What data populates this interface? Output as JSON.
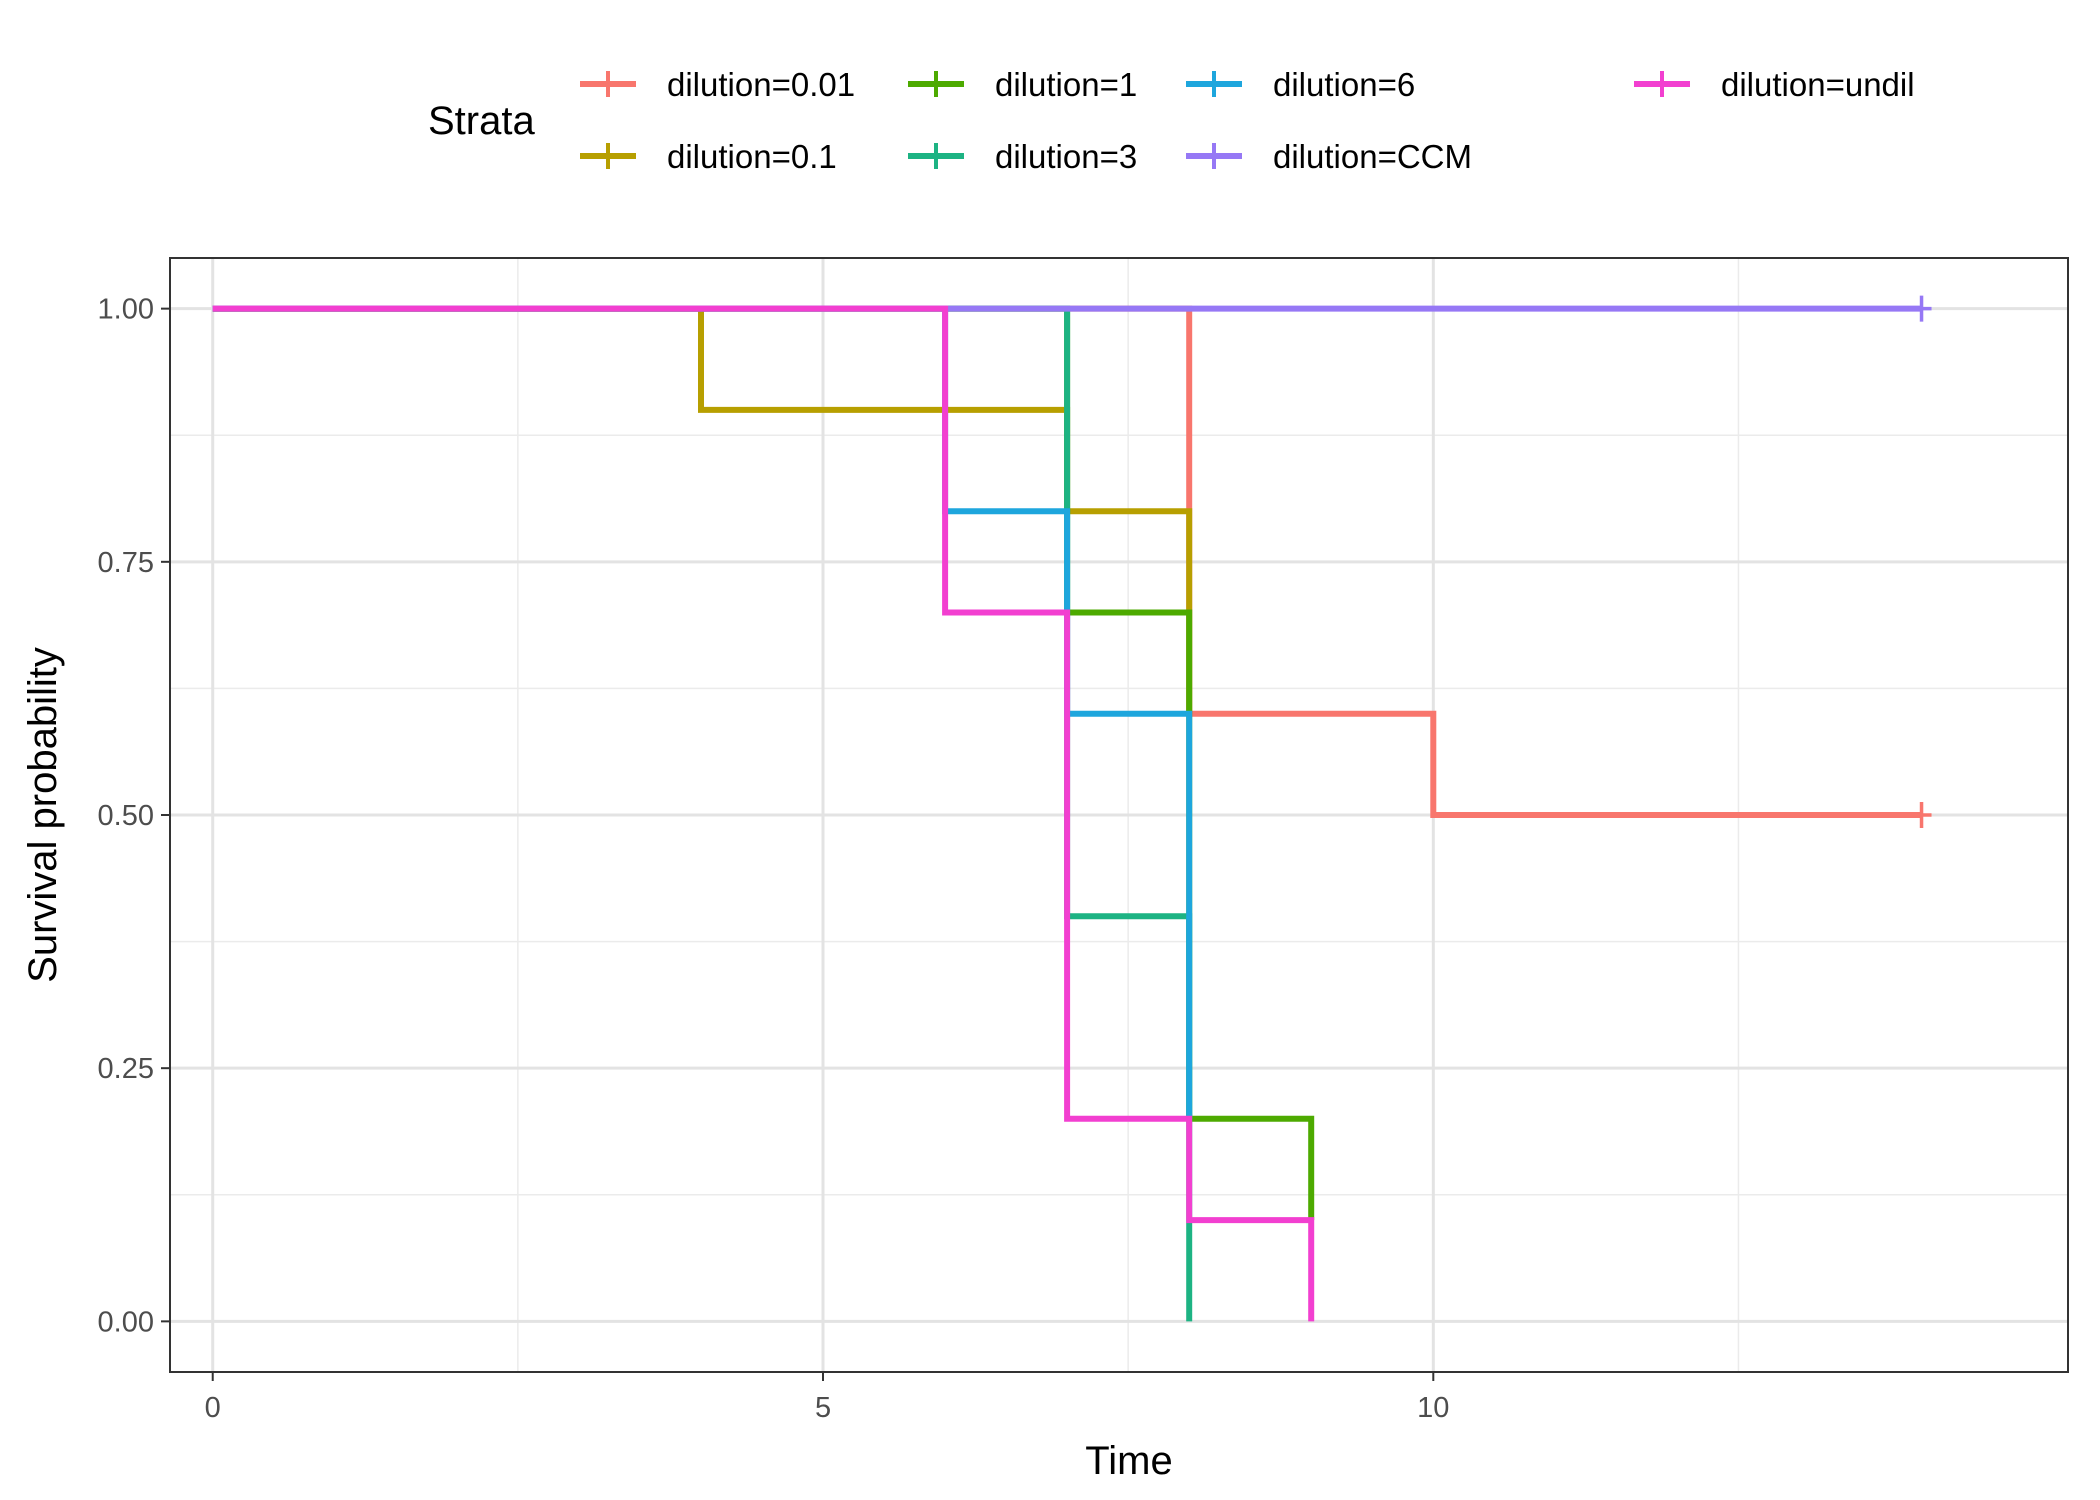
{
  "chart_data": {
    "type": "line",
    "step": true,
    "xlabel": "Time",
    "ylabel": "Survival probability",
    "xlim": [
      -0.35,
      15.2
    ],
    "ylim": [
      -0.05,
      1.05
    ],
    "x_ticks": [
      {
        "value": 0,
        "label": "0"
      },
      {
        "value": 5,
        "label": "5"
      },
      {
        "value": 10,
        "label": "10"
      }
    ],
    "x_minor_gridlines": [
      2.5,
      7.5,
      12.5
    ],
    "y_ticks": [
      {
        "value": 0,
        "label": "0.00"
      },
      {
        "value": 0.25,
        "label": "0.25"
      },
      {
        "value": 0.5,
        "label": "0.50"
      },
      {
        "value": 0.75,
        "label": "0.75"
      },
      {
        "value": 1,
        "label": "1.00"
      }
    ],
    "y_minor_gridlines": [
      0.125,
      0.375,
      0.625,
      0.875
    ],
    "grid": true,
    "legend": {
      "title": "Strata",
      "position": "top",
      "columns": 4
    },
    "series": [
      {
        "name": "dilution=0.01",
        "color": "#F8766D",
        "points": [
          [
            0,
            1
          ],
          [
            8,
            1
          ],
          [
            8,
            0.6
          ],
          [
            10,
            0.6
          ],
          [
            10,
            0.5
          ],
          [
            14,
            0.5
          ]
        ],
        "censor": [
          [
            14,
            0.5
          ]
        ]
      },
      {
        "name": "dilution=0.1",
        "color": "#B79F00",
        "points": [
          [
            0,
            1
          ],
          [
            4,
            1
          ],
          [
            4,
            0.9
          ],
          [
            7,
            0.9
          ],
          [
            7,
            0.8
          ],
          [
            8,
            0.8
          ],
          [
            8,
            0.6
          ]
        ],
        "censor": []
      },
      {
        "name": "dilution=1",
        "color": "#4DAA00",
        "points": [
          [
            0,
            1
          ],
          [
            7,
            1
          ],
          [
            7,
            0.7
          ],
          [
            8,
            0.7
          ],
          [
            8,
            0.2
          ],
          [
            9,
            0.2
          ],
          [
            9,
            0.1
          ]
        ],
        "censor": []
      },
      {
        "name": "dilution=3",
        "color": "#1DB383",
        "points": [
          [
            0,
            1
          ],
          [
            7,
            1
          ],
          [
            7,
            0.4
          ],
          [
            8,
            0.4
          ],
          [
            8,
            0
          ]
        ],
        "censor": []
      },
      {
        "name": "dilution=6",
        "color": "#1EA6DD",
        "points": [
          [
            0,
            1
          ],
          [
            6,
            1
          ],
          [
            6,
            0.8
          ],
          [
            7,
            0.8
          ],
          [
            7,
            0.6
          ],
          [
            8,
            0.6
          ],
          [
            8,
            0.2
          ]
        ],
        "censor": []
      },
      {
        "name": "dilution=CCM",
        "color": "#9678F5",
        "points": [
          [
            0,
            1
          ],
          [
            14,
            1
          ]
        ],
        "censor": [
          [
            14,
            1
          ]
        ]
      },
      {
        "name": "dilution=undil",
        "color": "#F23FD0",
        "points": [
          [
            0,
            1
          ],
          [
            6,
            1
          ],
          [
            6,
            0.7
          ],
          [
            7,
            0.7
          ],
          [
            7,
            0.2
          ],
          [
            8,
            0.2
          ],
          [
            8,
            0.1
          ],
          [
            9,
            0.1
          ],
          [
            9,
            0
          ]
        ],
        "censor": []
      }
    ]
  }
}
